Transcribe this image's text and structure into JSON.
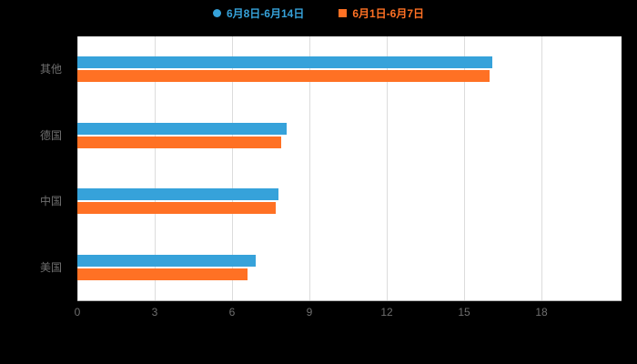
{
  "legend": {
    "items": [
      {
        "label": "6月8日-6月14日",
        "color": "#36A2DA",
        "marker": "circle"
      },
      {
        "label": "6月1日-6月7日",
        "color": "#FF7124",
        "marker": "square"
      }
    ]
  },
  "chart_data": {
    "type": "bar",
    "orientation": "horizontal",
    "title": "",
    "xlabel": "",
    "ylabel": "",
    "categories": [
      "其他",
      "德国",
      "中国",
      "美国"
    ],
    "series": [
      {
        "name": "6月8日-6月14日",
        "color": "#36A2DA",
        "values": [
          16.1,
          8.1,
          7.8,
          6.9
        ]
      },
      {
        "name": "6月1日-6月7日",
        "color": "#FF7124",
        "values": [
          16.0,
          7.9,
          7.7,
          6.6
        ]
      }
    ],
    "xlim": [
      0,
      18
    ],
    "xticks": [
      0,
      3,
      6,
      9,
      12,
      15,
      18
    ],
    "grid": true,
    "legend_position": "top",
    "plot_background": "#ffffff",
    "page_background": "#000000",
    "gridline_color": "#dcdcdc",
    "axis_text_color": "#6f6f6f"
  }
}
